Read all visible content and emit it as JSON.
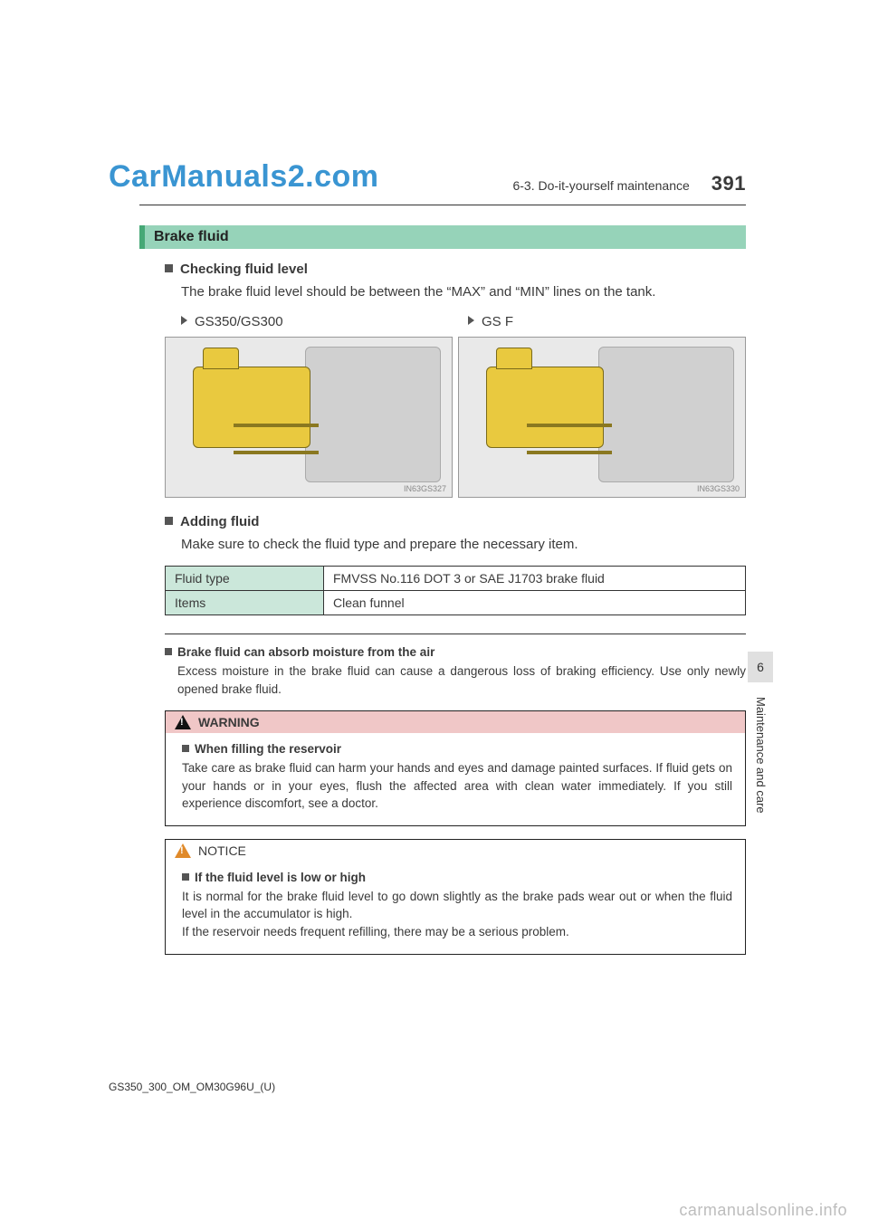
{
  "watermark_top": "CarManuals2.com",
  "header": {
    "section": "6-3. Do-it-yourself maintenance",
    "page_number": "391"
  },
  "section_title": "Brake fluid",
  "checking": {
    "title": "Checking fluid level",
    "text": "The brake fluid level should be between the “MAX” and “MIN” lines on the tank."
  },
  "models": {
    "left": "GS350/GS300",
    "right": "GS F"
  },
  "figure_ids": {
    "left": "IN63GS327",
    "right": "IN63GS330"
  },
  "adding": {
    "title": "Adding fluid",
    "text": "Make sure to check the fluid type and prepare the necessary item."
  },
  "table": {
    "rows": [
      {
        "label": "Fluid type",
        "value": "FMVSS No.116 DOT 3 or SAE J1703 brake fluid"
      },
      {
        "label": "Items",
        "value": "Clean funnel"
      }
    ]
  },
  "moisture": {
    "title": "Brake fluid can absorb moisture from the air",
    "text": "Excess moisture in the brake fluid can cause a dangerous loss of braking efficiency. Use only newly opened brake fluid."
  },
  "warning": {
    "label": "WARNING",
    "subtitle": "When filling the reservoir",
    "text": "Take care as brake fluid can harm your hands and eyes and damage painted surfaces. If fluid gets on your hands or in your eyes, flush the affected area with clean water immediately. If you still experience discomfort, see a doctor."
  },
  "notice": {
    "label": "NOTICE",
    "subtitle": "If the fluid level is low or high",
    "text1": "It is normal for the brake fluid level to go down slightly as the brake pads wear out or when the fluid level in the accumulator is high.",
    "text2": "If the reservoir needs frequent refilling, there may be a serious problem."
  },
  "side": {
    "chapter": "6",
    "label": "Maintenance and care"
  },
  "doc_code": "GS350_300_OM_OM30G96U_(U)",
  "bottom_watermark": "carmanualsonline.info"
}
